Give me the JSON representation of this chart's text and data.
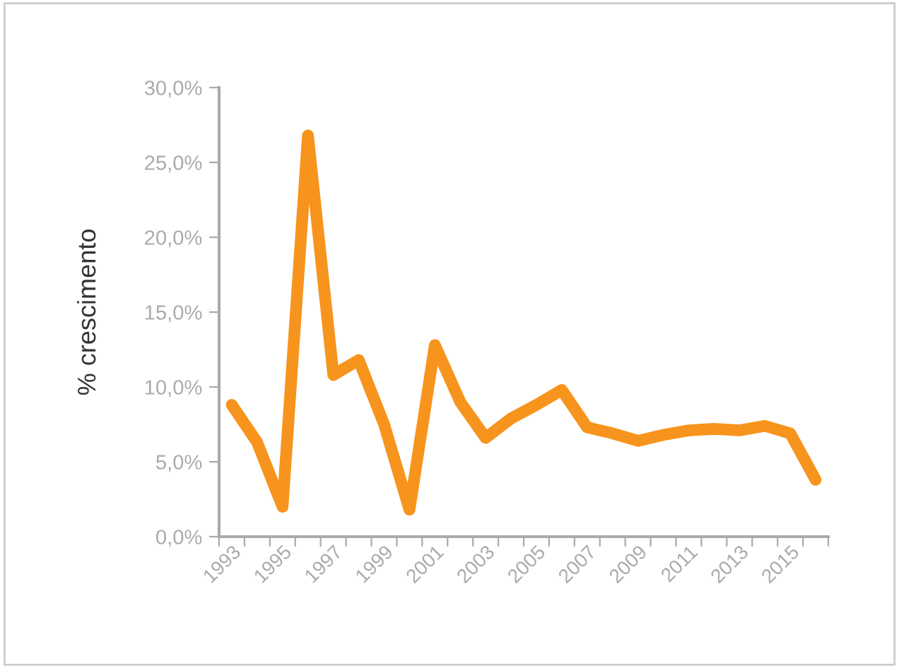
{
  "chart_data": {
    "type": "line",
    "ylabel": "% crescimento",
    "categories": [
      "1993",
      null,
      "1995",
      null,
      "1997",
      null,
      "1999",
      null,
      "2001",
      null,
      "2003",
      null,
      "2005",
      null,
      "2007",
      null,
      "2009",
      null,
      "2011",
      null,
      "2013",
      null,
      "2015",
      null
    ],
    "series": [
      {
        "color": "#f7941d",
        "values": [
          8.8,
          6.3,
          2.0,
          26.8,
          10.8,
          11.8,
          7.5,
          1.8,
          12.8,
          9.0,
          6.6,
          7.9,
          8.8,
          9.8,
          7.3,
          6.9,
          6.4,
          6.8,
          7.1,
          7.2,
          7.1,
          7.4,
          6.9,
          3.8
        ]
      }
    ],
    "ylim": [
      0,
      30
    ],
    "yticks": [
      {
        "value": 0,
        "label": "0,0%"
      },
      {
        "value": 5,
        "label": "5,0%"
      },
      {
        "value": 10,
        "label": "10,0%"
      },
      {
        "value": 15,
        "label": "15,0%"
      },
      {
        "value": 20,
        "label": "20,0%"
      },
      {
        "value": 25,
        "label": "25,0%"
      },
      {
        "value": 30,
        "label": "30,0%"
      }
    ],
    "grid": false,
    "marker": "none",
    "line_style": "solid"
  }
}
